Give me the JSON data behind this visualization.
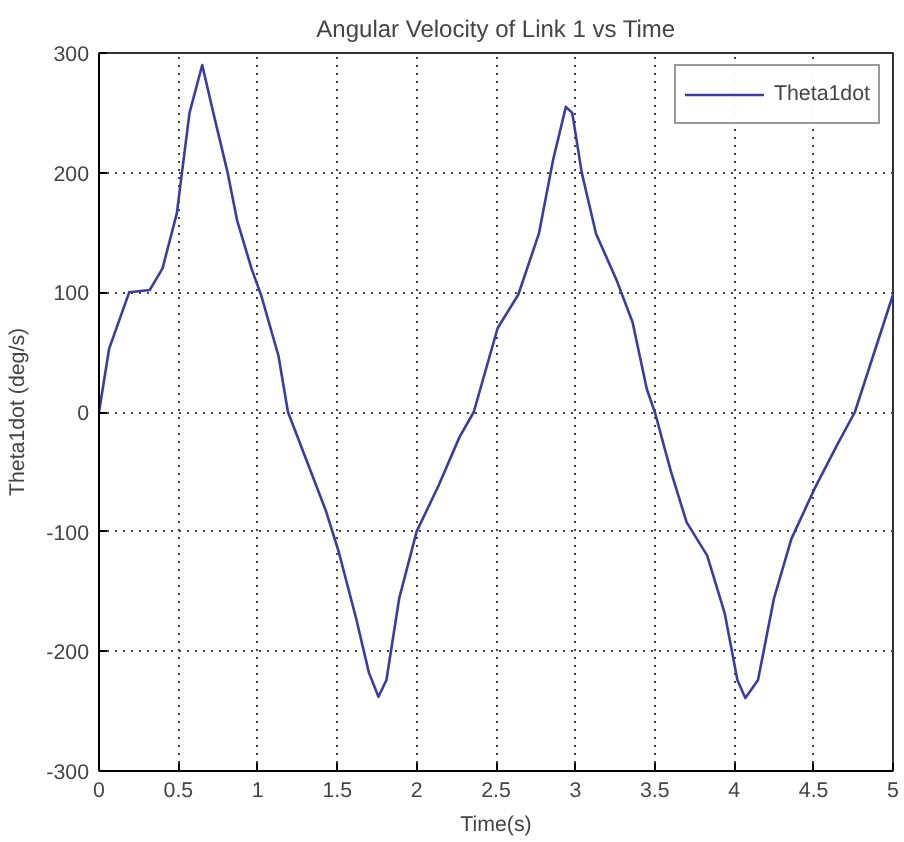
{
  "chart_data": {
    "type": "line",
    "title": "Angular Velocity of Link 1 vs Time",
    "xlabel": "Time(s)",
    "ylabel": "Theta1dot (deg/s)",
    "x": [
      0,
      0.064,
      0.19,
      0.32,
      0.4,
      0.49,
      0.57,
      0.65,
      0.72,
      0.81,
      0.87,
      0.96,
      1.02,
      1.13,
      1.19,
      1.3,
      1.43,
      1.51,
      1.62,
      1.7,
      1.76,
      1.81,
      1.89,
      2.0,
      2.14,
      2.27,
      2.36,
      2.51,
      2.64,
      2.77,
      2.86,
      2.94,
      2.98,
      3.04,
      3.13,
      3.26,
      3.36,
      3.45,
      3.5,
      3.6,
      3.7,
      3.83,
      3.94,
      4.02,
      4.07,
      4.15,
      4.25,
      4.36,
      4.51,
      4.65,
      4.76,
      5.0
    ],
    "series": [
      {
        "name": "Theta1dot",
        "color": "#3c3ca0",
        "values": [
          0,
          53,
          100,
          102,
          120,
          166,
          250,
          290,
          250,
          200,
          160,
          120,
          98,
          47,
          0,
          -38,
          -83,
          -117,
          -173,
          -218,
          -238,
          -224,
          -156,
          -100,
          -61,
          -21,
          0,
          70,
          98,
          149,
          211,
          255,
          250,
          200,
          149,
          110,
          75,
          19,
          0,
          -49,
          -92,
          -120,
          -168,
          -224,
          -239,
          -224,
          -156,
          -106,
          -63,
          -27,
          0,
          98
        ]
      }
    ],
    "xlim": [
      0,
      5
    ],
    "ylim": [
      -300,
      300
    ],
    "xticks": [
      0,
      0.5,
      1,
      1.5,
      2,
      2.5,
      3,
      3.5,
      4,
      4.5,
      5
    ],
    "yticks": [
      -300,
      -200,
      -100,
      0,
      100,
      200,
      300
    ],
    "grid": true,
    "legend": "top right",
    "line_style": "solid",
    "marker": "none"
  }
}
